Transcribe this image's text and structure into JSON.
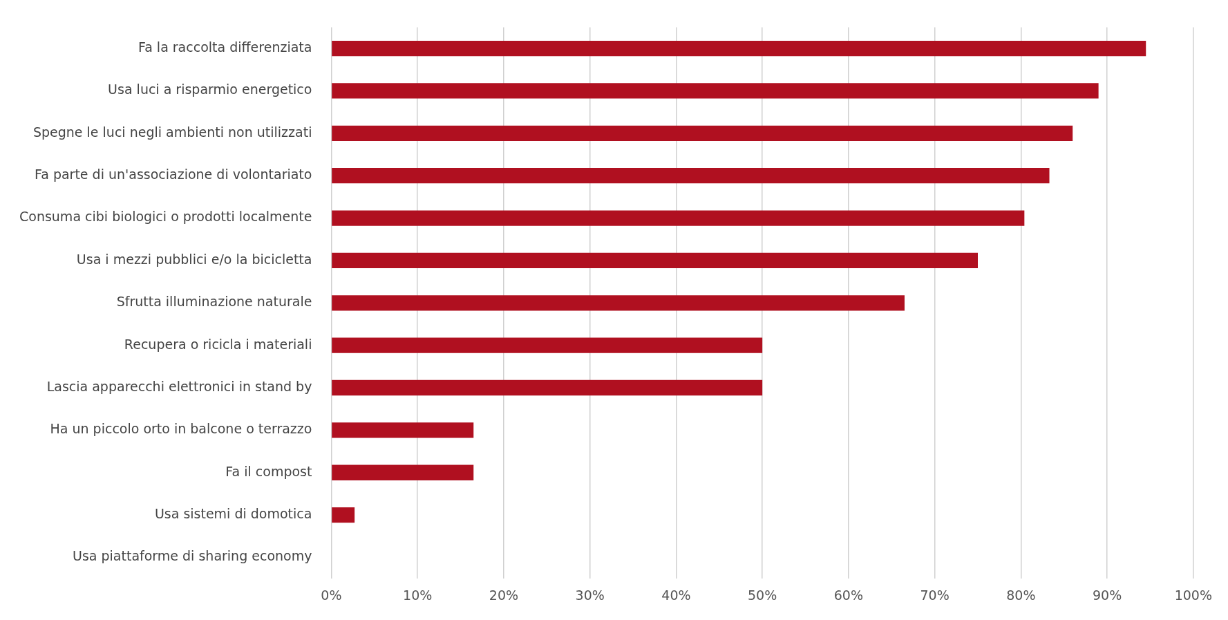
{
  "chart_data": {
    "type": "bar",
    "orientation": "horizontal",
    "categories": [
      "Fa la raccolta differenziata",
      "Usa luci a risparmio energetico",
      "Spegne le luci negli ambienti non utilizzati",
      "Fa parte di un'associazione di volontariato",
      "Consuma cibi biologici o prodotti localmente",
      "Usa i mezzi pubblici e/o la bicicletta",
      "Sfrutta illuminazione naturale",
      "Recupera o ricicla i materiali",
      "Lascia apparecchi elettronici in stand by",
      "Ha un piccolo orto in balcone o terrazzo",
      "Fa il compost",
      "Usa sistemi di domotica",
      "Usa piattaforme di sharing economy"
    ],
    "values": [
      94.5,
      89,
      86,
      83.3,
      80.4,
      75,
      66.5,
      50,
      50,
      16.5,
      16.5,
      2.7,
      0
    ],
    "color": "#b01020",
    "xlim": [
      0,
      100
    ],
    "xticks": [
      {
        "value": 0,
        "label": "0%"
      },
      {
        "value": 10,
        "label": "10%"
      },
      {
        "value": 20,
        "label": "20%"
      },
      {
        "value": 30,
        "label": "30%"
      },
      {
        "value": 40,
        "label": "40%"
      },
      {
        "value": 50,
        "label": "50%"
      },
      {
        "value": 60,
        "label": "60%"
      },
      {
        "value": 70,
        "label": "70%"
      },
      {
        "value": 80,
        "label": "80%"
      },
      {
        "value": 90,
        "label": "90%"
      },
      {
        "value": 100,
        "label": "100%"
      }
    ],
    "grid": "x",
    "legend": false
  }
}
